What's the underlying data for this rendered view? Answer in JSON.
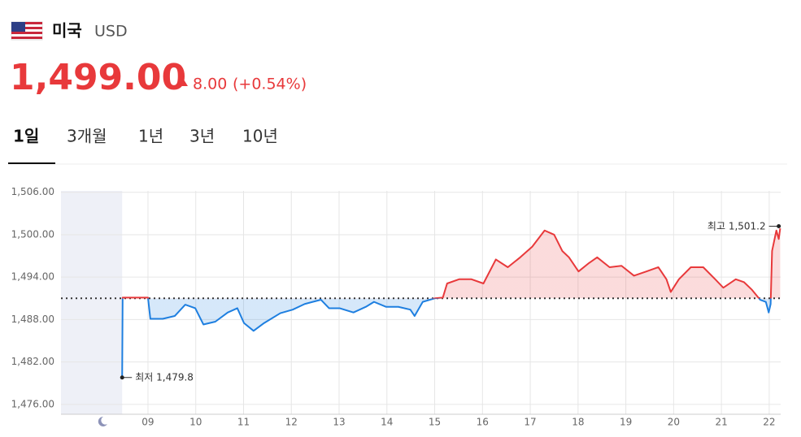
{
  "header": {
    "country": "미국",
    "currency": "USD",
    "price": "1,499.00",
    "change": "8.00",
    "change_pct": "(+0.54%)"
  },
  "tabs": [
    "1일",
    "3개월",
    "1년",
    "3년",
    "10년"
  ],
  "chart_data": {
    "type": "line",
    "x": [
      8.46,
      8.47,
      9.0,
      9.05,
      9.31,
      9.56,
      9.78,
      9.99,
      10.16,
      10.41,
      10.67,
      10.87,
      11.01,
      11.21,
      11.43,
      11.77,
      12.03,
      12.28,
      12.62,
      12.79,
      13.01,
      13.3,
      13.56,
      13.73,
      13.98,
      14.24,
      14.49,
      14.58,
      14.75,
      15.0,
      15.17,
      15.26,
      15.51,
      15.77,
      16.02,
      16.28,
      16.53,
      16.79,
      17.04,
      17.3,
      17.5,
      17.67,
      17.81,
      18.01,
      18.23,
      18.4,
      18.66,
      18.91,
      19.17,
      19.43,
      19.68,
      19.85,
      19.94,
      20.11,
      20.36,
      20.62,
      20.87,
      21.04,
      21.3,
      21.47,
      21.64,
      21.81,
      21.93,
      21.99,
      22.03,
      22.06,
      22.15,
      22.2,
      22.23
    ],
    "values": [
      1479.8,
      1491.1,
      1491.1,
      1488.1,
      1488.1,
      1488.5,
      1490.1,
      1489.6,
      1487.3,
      1487.7,
      1489.0,
      1489.6,
      1487.5,
      1486.4,
      1487.5,
      1488.9,
      1489.4,
      1490.2,
      1490.8,
      1489.6,
      1489.6,
      1489.0,
      1489.8,
      1490.5,
      1489.8,
      1489.8,
      1489.4,
      1488.5,
      1490.5,
      1491.0,
      1491.1,
      1493.1,
      1493.7,
      1493.7,
      1493.1,
      1496.5,
      1495.4,
      1496.8,
      1498.3,
      1500.6,
      1500.0,
      1497.7,
      1496.8,
      1494.8,
      1496.0,
      1496.8,
      1495.4,
      1495.6,
      1494.2,
      1494.8,
      1495.4,
      1493.7,
      1491.9,
      1493.7,
      1495.4,
      1495.4,
      1493.7,
      1492.5,
      1493.7,
      1493.3,
      1492.2,
      1490.8,
      1490.5,
      1489.0,
      1490.2,
      1497.7,
      1500.6,
      1499.4,
      1500.9
    ],
    "baseline": 1491,
    "up_color": "#e8393b",
    "down_color": "#1e7fe0",
    "xlim": [
      7.18,
      22.24
    ],
    "ylim": [
      1474.6,
      1506.2
    ],
    "xticks": [
      {
        "value": 9,
        "label": "09"
      },
      10,
      11,
      12,
      13,
      14,
      15,
      16,
      17,
      18,
      19,
      20,
      21,
      22
    ],
    "yticks": [
      {
        "value": 1476,
        "label": "1,476.00"
      },
      {
        "value": 1482,
        "label": "1,482.00"
      },
      {
        "value": 1488,
        "label": "1,488.00"
      },
      {
        "value": 1494,
        "label": "1,494.00"
      },
      {
        "value": 1500,
        "label": "1,500.00"
      },
      {
        "value": 1506,
        "label": "1,506.00"
      }
    ],
    "grid": true,
    "annotations": [
      {
        "text": "최저",
        "value": 1479.8,
        "value_label": "1,479.8",
        "x": 8.46
      },
      {
        "text": "최고",
        "value": 1501.2,
        "value_label": "1,501.2",
        "x": 22.2
      }
    ]
  }
}
